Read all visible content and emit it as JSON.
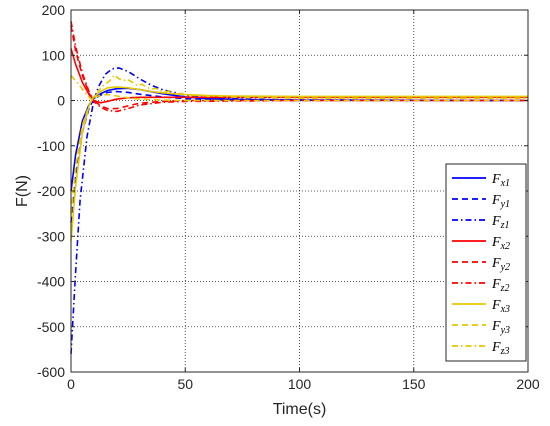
{
  "chart_data": {
    "type": "line",
    "title": "",
    "xlabel": "Time(s)",
    "ylabel": "F(N)",
    "xlim": [
      0,
      200
    ],
    "ylim": [
      -600,
      200
    ],
    "xticks": [
      0,
      50,
      100,
      150,
      200
    ],
    "yticks": [
      -600,
      -500,
      -400,
      -300,
      -200,
      -100,
      0,
      100,
      200
    ],
    "grid": true,
    "legend_position": "right",
    "series": [
      {
        "name": "F",
        "sub": "x1",
        "color": "#0000ff",
        "dash": "solid",
        "points": [
          [
            0,
            -200
          ],
          [
            2,
            -120
          ],
          [
            5,
            -45
          ],
          [
            8,
            -8
          ],
          [
            10,
            5
          ],
          [
            13,
            15
          ],
          [
            16,
            22
          ],
          [
            20,
            26
          ],
          [
            25,
            27
          ],
          [
            30,
            24
          ],
          [
            40,
            15
          ],
          [
            50,
            8
          ],
          [
            60,
            4
          ],
          [
            75,
            2
          ],
          [
            100,
            1
          ],
          [
            200,
            0
          ]
        ]
      },
      {
        "name": "F",
        "sub": "y1",
        "color": "#0000ff",
        "dash": "dash",
        "points": [
          [
            0,
            -270
          ],
          [
            2,
            -170
          ],
          [
            5,
            -70
          ],
          [
            8,
            -15
          ],
          [
            10,
            3
          ],
          [
            13,
            12
          ],
          [
            16,
            18
          ],
          [
            20,
            20
          ],
          [
            25,
            18
          ],
          [
            30,
            14
          ],
          [
            40,
            8
          ],
          [
            50,
            4
          ],
          [
            60,
            2
          ],
          [
            100,
            0
          ],
          [
            200,
            0
          ]
        ]
      },
      {
        "name": "F",
        "sub": "z1",
        "color": "#0000ff",
        "dash": "dashdot",
        "points": [
          [
            0,
            -560
          ],
          [
            2,
            -380
          ],
          [
            4,
            -220
          ],
          [
            7,
            -80
          ],
          [
            10,
            0
          ],
          [
            12,
            30
          ],
          [
            15,
            58
          ],
          [
            18,
            70
          ],
          [
            21,
            72
          ],
          [
            25,
            64
          ],
          [
            30,
            48
          ],
          [
            35,
            34
          ],
          [
            40,
            24
          ],
          [
            50,
            12
          ],
          [
            60,
            6
          ],
          [
            75,
            3
          ],
          [
            100,
            1
          ],
          [
            200,
            0
          ]
        ]
      },
      {
        "name": "F",
        "sub": "x2",
        "color": "#ff0000",
        "dash": "solid",
        "points": [
          [
            0,
            115
          ],
          [
            2,
            80
          ],
          [
            5,
            40
          ],
          [
            8,
            12
          ],
          [
            10,
            0
          ],
          [
            13,
            -5
          ],
          [
            16,
            -2
          ],
          [
            20,
            3
          ],
          [
            25,
            6
          ],
          [
            30,
            7
          ],
          [
            40,
            7
          ],
          [
            60,
            7
          ],
          [
            100,
            7
          ],
          [
            200,
            7
          ]
        ]
      },
      {
        "name": "F",
        "sub": "y2",
        "color": "#ff0000",
        "dash": "dash",
        "points": [
          [
            0,
            165
          ],
          [
            2,
            110
          ],
          [
            5,
            55
          ],
          [
            8,
            15
          ],
          [
            10,
            0
          ],
          [
            13,
            -12
          ],
          [
            16,
            -18
          ],
          [
            20,
            -18
          ],
          [
            25,
            -12
          ],
          [
            30,
            -6
          ],
          [
            40,
            -2
          ],
          [
            50,
            0
          ],
          [
            100,
            0
          ],
          [
            200,
            0
          ]
        ]
      },
      {
        "name": "F",
        "sub": "z2",
        "color": "#ff0000",
        "dash": "dashdot",
        "points": [
          [
            0,
            175
          ],
          [
            2,
            120
          ],
          [
            5,
            60
          ],
          [
            8,
            18
          ],
          [
            10,
            -2
          ],
          [
            13,
            -15
          ],
          [
            16,
            -22
          ],
          [
            20,
            -24
          ],
          [
            25,
            -18
          ],
          [
            30,
            -10
          ],
          [
            40,
            -4
          ],
          [
            50,
            -2
          ],
          [
            100,
            0
          ],
          [
            200,
            0
          ]
        ]
      },
      {
        "name": "F",
        "sub": "x3",
        "color": "#e6c800",
        "dash": "solid",
        "points": [
          [
            0,
            -310
          ],
          [
            2,
            -190
          ],
          [
            5,
            -70
          ],
          [
            8,
            -10
          ],
          [
            10,
            8
          ],
          [
            13,
            20
          ],
          [
            16,
            28
          ],
          [
            20,
            30
          ],
          [
            25,
            28
          ],
          [
            30,
            24
          ],
          [
            35,
            20
          ],
          [
            40,
            17
          ],
          [
            50,
            13
          ],
          [
            60,
            11
          ],
          [
            70,
            10
          ],
          [
            100,
            9
          ],
          [
            200,
            9
          ]
        ]
      },
      {
        "name": "F",
        "sub": "y3",
        "color": "#e6c800",
        "dash": "dash",
        "points": [
          [
            0,
            -250
          ],
          [
            2,
            -150
          ],
          [
            5,
            -55
          ],
          [
            8,
            -8
          ],
          [
            10,
            6
          ],
          [
            13,
            12
          ],
          [
            16,
            13
          ],
          [
            20,
            10
          ],
          [
            25,
            6
          ],
          [
            30,
            3
          ],
          [
            40,
            1
          ],
          [
            50,
            0
          ],
          [
            100,
            0
          ],
          [
            200,
            0
          ]
        ]
      },
      {
        "name": "F",
        "sub": "z3",
        "color": "#e6c800",
        "dash": "dashdot",
        "points": [
          [
            0,
            55
          ],
          [
            3,
            38
          ],
          [
            6,
            18
          ],
          [
            9,
            2
          ],
          [
            11,
            10
          ],
          [
            13,
            28
          ],
          [
            15,
            36
          ],
          [
            17,
            44
          ],
          [
            19,
            56
          ],
          [
            21,
            48
          ],
          [
            23,
            44
          ],
          [
            25,
            46
          ],
          [
            27,
            40
          ],
          [
            29,
            33
          ],
          [
            31,
            36
          ],
          [
            33,
            30
          ],
          [
            35,
            25
          ],
          [
            37,
            27
          ],
          [
            39,
            22
          ],
          [
            41,
            19
          ],
          [
            43,
            21
          ],
          [
            45,
            16
          ],
          [
            47,
            14
          ],
          [
            49,
            16
          ],
          [
            51,
            12
          ],
          [
            54,
            11
          ],
          [
            57,
            12
          ],
          [
            60,
            9
          ],
          [
            64,
            10
          ],
          [
            68,
            8
          ],
          [
            75,
            7
          ],
          [
            90,
            6
          ],
          [
            100,
            5
          ],
          [
            200,
            5
          ]
        ]
      }
    ]
  }
}
